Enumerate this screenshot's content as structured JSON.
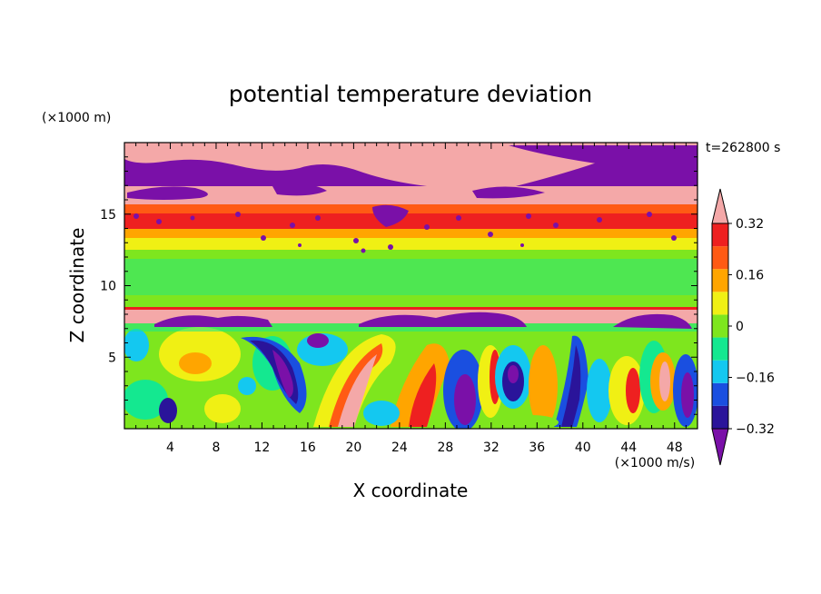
{
  "chart_data": {
    "type": "heatmap",
    "title": "potential temperature deviation",
    "time_label": "t=262800 s",
    "xlabel": "X coordinate",
    "ylabel": "Z coordinate",
    "x_unit": "(×1000 m/s)",
    "y_unit": "(×1000 m)",
    "xlim": [
      0,
      50
    ],
    "ylim": [
      0,
      20
    ],
    "x_ticks": [
      "4",
      "8",
      "12",
      "16",
      "20",
      "24",
      "28",
      "32",
      "36",
      "40",
      "44",
      "48"
    ],
    "y_ticks": [
      "5",
      "10",
      "15"
    ],
    "x_tick_values": [
      4,
      8,
      12,
      16,
      20,
      24,
      28,
      32,
      36,
      40,
      44,
      48
    ],
    "y_tick_values": [
      5,
      10,
      15
    ],
    "colorbar": {
      "levels": [
        -0.4,
        -0.32,
        -0.24,
        -0.16,
        -0.08,
        0,
        0.08,
        0.16,
        0.24,
        0.32,
        0.4
      ],
      "labels": [
        "0.32",
        "0.16",
        "0",
        "−0.16",
        "−0.32"
      ],
      "label_values": [
        0.32,
        0.16,
        0,
        -0.16,
        -0.32
      ],
      "colors": [
        "#7a10a8",
        "#2a149a",
        "#1a4fe0",
        "#14c8f0",
        "#14e890",
        "#7ee61e",
        "#f0f014",
        "#ffa500",
        "#ff5a14",
        "#ee2020",
        "#f4a8a8"
      ],
      "extend": "both"
    },
    "bands": [
      {
        "z_range": [
          19.4,
          20
        ],
        "value": "high (pink)"
      },
      {
        "z_range": [
          16.5,
          19.4
        ],
        "value": "mixed (purple / pink)"
      },
      {
        "z_range": [
          13.5,
          15.5
        ],
        "value": "0.24 to 0.32"
      },
      {
        "z_range": [
          12.5,
          13.5
        ],
        "value": "0.16"
      },
      {
        "z_range": [
          8.5,
          12.5
        ],
        "value": "0 to 0.08"
      },
      {
        "z_range": [
          7.6,
          8.6
        ],
        "value": "0.4 (pink)"
      },
      {
        "z_range": [
          0,
          7.5
        ],
        "value": "turbulent eddies, -0.4 to 0.4"
      }
    ]
  }
}
